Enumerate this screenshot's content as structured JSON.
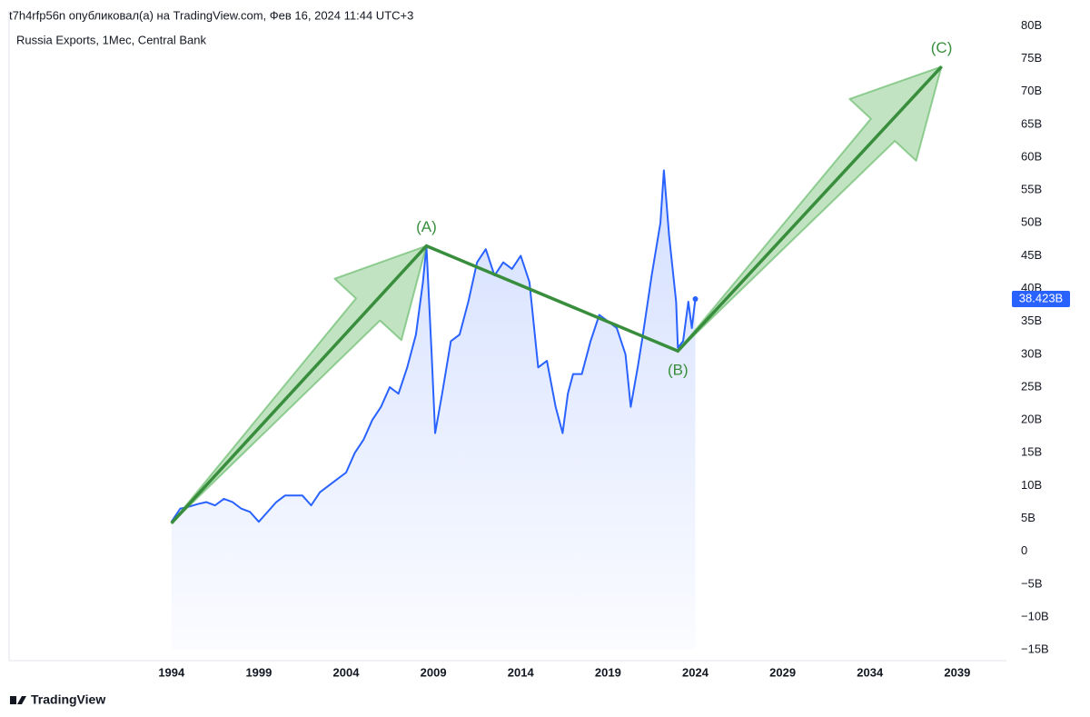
{
  "header": "t7h4rfp56n опубликовал(а) на TradingView.com, Фев 16, 2024 11:44 UTC+3",
  "brand": "TradingView",
  "chart_data": {
    "type": "line",
    "title": "Russia Exports, 1Мес, Central Bank",
    "xlim": [
      1984.7,
      2041.4
    ],
    "ylim": [
      -16.5,
      82
    ],
    "xticks": [
      1994,
      1999,
      2004,
      2009,
      2014,
      2019,
      2024,
      2029,
      2034,
      2039
    ],
    "yticks": [
      {
        "value": 80,
        "label": "80B"
      },
      {
        "value": 75,
        "label": "75B"
      },
      {
        "value": 70,
        "label": "70B"
      },
      {
        "value": 65,
        "label": "65B"
      },
      {
        "value": 60,
        "label": "60B"
      },
      {
        "value": 55,
        "label": "55B"
      },
      {
        "value": 50,
        "label": "50B"
      },
      {
        "value": 45,
        "label": "45B"
      },
      {
        "value": 40,
        "label": "40B"
      },
      {
        "value": 35,
        "label": "35B"
      },
      {
        "value": 30,
        "label": "30B"
      },
      {
        "value": 25,
        "label": "25B"
      },
      {
        "value": 20,
        "label": "20B"
      },
      {
        "value": 15,
        "label": "15B"
      },
      {
        "value": 10,
        "label": "10B"
      },
      {
        "value": 5,
        "label": "5B"
      },
      0,
      {
        "value": -5,
        "label": "−5B"
      },
      {
        "value": -10,
        "label": "−10B"
      },
      {
        "value": -15,
        "label": "−15B"
      }
    ],
    "series": [
      {
        "name": "Russia Exports",
        "color": "#2962ff",
        "x": [
          1994.0,
          1994.5,
          1995.0,
          1995.5,
          1996.0,
          1996.5,
          1997.0,
          1997.5,
          1998.0,
          1998.5,
          1999.0,
          1999.5,
          2000.0,
          2000.5,
          2001.0,
          2001.5,
          2002.0,
          2002.5,
          2003.0,
          2003.5,
          2004.0,
          2004.5,
          2005.0,
          2005.5,
          2006.0,
          2006.5,
          2007.0,
          2007.5,
          2008.0,
          2008.4,
          2008.6,
          2008.9,
          2009.1,
          2009.5,
          2010.0,
          2010.5,
          2011.0,
          2011.5,
          2012.0,
          2012.5,
          2013.0,
          2013.5,
          2014.0,
          2014.5,
          2015.0,
          2015.5,
          2016.0,
          2016.4,
          2016.7,
          2017.0,
          2017.5,
          2018.0,
          2018.5,
          2019.0,
          2019.5,
          2020.0,
          2020.3,
          2020.7,
          2021.0,
          2021.5,
          2022.0,
          2022.2,
          2022.5,
          2022.9,
          2023.0,
          2023.3,
          2023.6,
          2023.8,
          2024.0
        ],
        "values": [
          4.5,
          6.5,
          6.8,
          7.2,
          7.5,
          7.0,
          8,
          7.5,
          6.5,
          6,
          4.5,
          6,
          7.5,
          8.5,
          8.5,
          8.5,
          7,
          9,
          10,
          11,
          12,
          15,
          17,
          20,
          22,
          25,
          24,
          28,
          33,
          41,
          46.5,
          30,
          18,
          24,
          32,
          33,
          38,
          44,
          46,
          42,
          44,
          43,
          45,
          41,
          28,
          29,
          22,
          18,
          24,
          27,
          27,
          32,
          36,
          35,
          34,
          30,
          22,
          28,
          33,
          42,
          50,
          58,
          48,
          38,
          31,
          32,
          38,
          34,
          38.423
        ],
        "last_label": {
          "value": 38.423,
          "label": "38.423B"
        }
      }
    ],
    "wave": {
      "color": "#388e3c",
      "x": [
        1994.0,
        2008.6,
        2023.0,
        2038.1
      ],
      "y": [
        4.3,
        46.5,
        30.5,
        73.8
      ],
      "labels": [
        null,
        "(A)",
        "(B)",
        "(C)"
      ]
    }
  }
}
